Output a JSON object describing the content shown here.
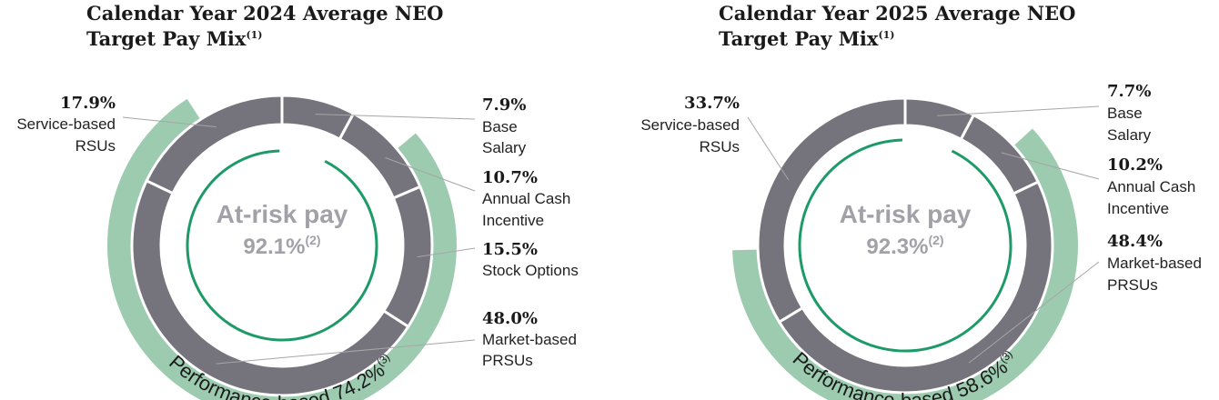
{
  "colors": {
    "segment": "#75737b",
    "performance_band": "#9ccbb0",
    "inner_arc": "#1d9a68",
    "leader": "#a6a6a6",
    "center_text": "#a2a1a8"
  },
  "chart_data": [
    {
      "type": "pie",
      "title_line1": "Calendar Year 2024 Average NEO",
      "title_line2": "Target Pay Mix",
      "title_note": "(1)",
      "center_label": "At-risk pay",
      "center_value": "92.1%",
      "center_note": "(2)",
      "at_risk_pct": 92.1,
      "performance_label": "Performance-based 74.2%",
      "performance_note": "(3)",
      "performance_pct": 74.2,
      "segments": [
        {
          "name": "Base Salary",
          "value": 7.9,
          "pct_label": "7.9%",
          "label_lines": [
            "Base",
            "Salary"
          ]
        },
        {
          "name": "Annual Cash Incentive",
          "value": 10.7,
          "pct_label": "10.7%",
          "label_lines": [
            "Annual Cash",
            "Incentive"
          ]
        },
        {
          "name": "Stock Options",
          "value": 15.5,
          "pct_label": "15.5%",
          "label_lines": [
            "Stock Options"
          ]
        },
        {
          "name": "Market-based PRSUs",
          "value": 48.0,
          "pct_label": "48.0%",
          "label_lines": [
            "Market-based",
            "PRSUs"
          ]
        },
        {
          "name": "Service-based RSUs",
          "value": 17.9,
          "pct_label": "17.9%",
          "label_lines": [
            "Service-based",
            "RSUs"
          ]
        }
      ]
    },
    {
      "type": "pie",
      "title_line1": "Calendar Year 2025 Average NEO",
      "title_line2": "Target Pay Mix",
      "title_note": "(1)",
      "center_label": "At-risk pay",
      "center_value": "92.3%",
      "center_note": "(2)",
      "at_risk_pct": 92.3,
      "performance_label": "Performance-based 58.6%",
      "performance_note": "(3)",
      "performance_pct": 58.6,
      "segments": [
        {
          "name": "Base Salary",
          "value": 7.7,
          "pct_label": "7.7%",
          "label_lines": [
            "Base",
            "Salary"
          ]
        },
        {
          "name": "Annual Cash Incentive",
          "value": 10.2,
          "pct_label": "10.2%",
          "label_lines": [
            "Annual Cash",
            "Incentive"
          ]
        },
        {
          "name": "Market-based PRSUs",
          "value": 48.4,
          "pct_label": "48.4%",
          "label_lines": [
            "Market-based",
            "PRSUs"
          ]
        },
        {
          "name": "Service-based RSUs",
          "value": 33.7,
          "pct_label": "33.7%",
          "label_lines": [
            "Service-based",
            "RSUs"
          ]
        }
      ]
    }
  ]
}
